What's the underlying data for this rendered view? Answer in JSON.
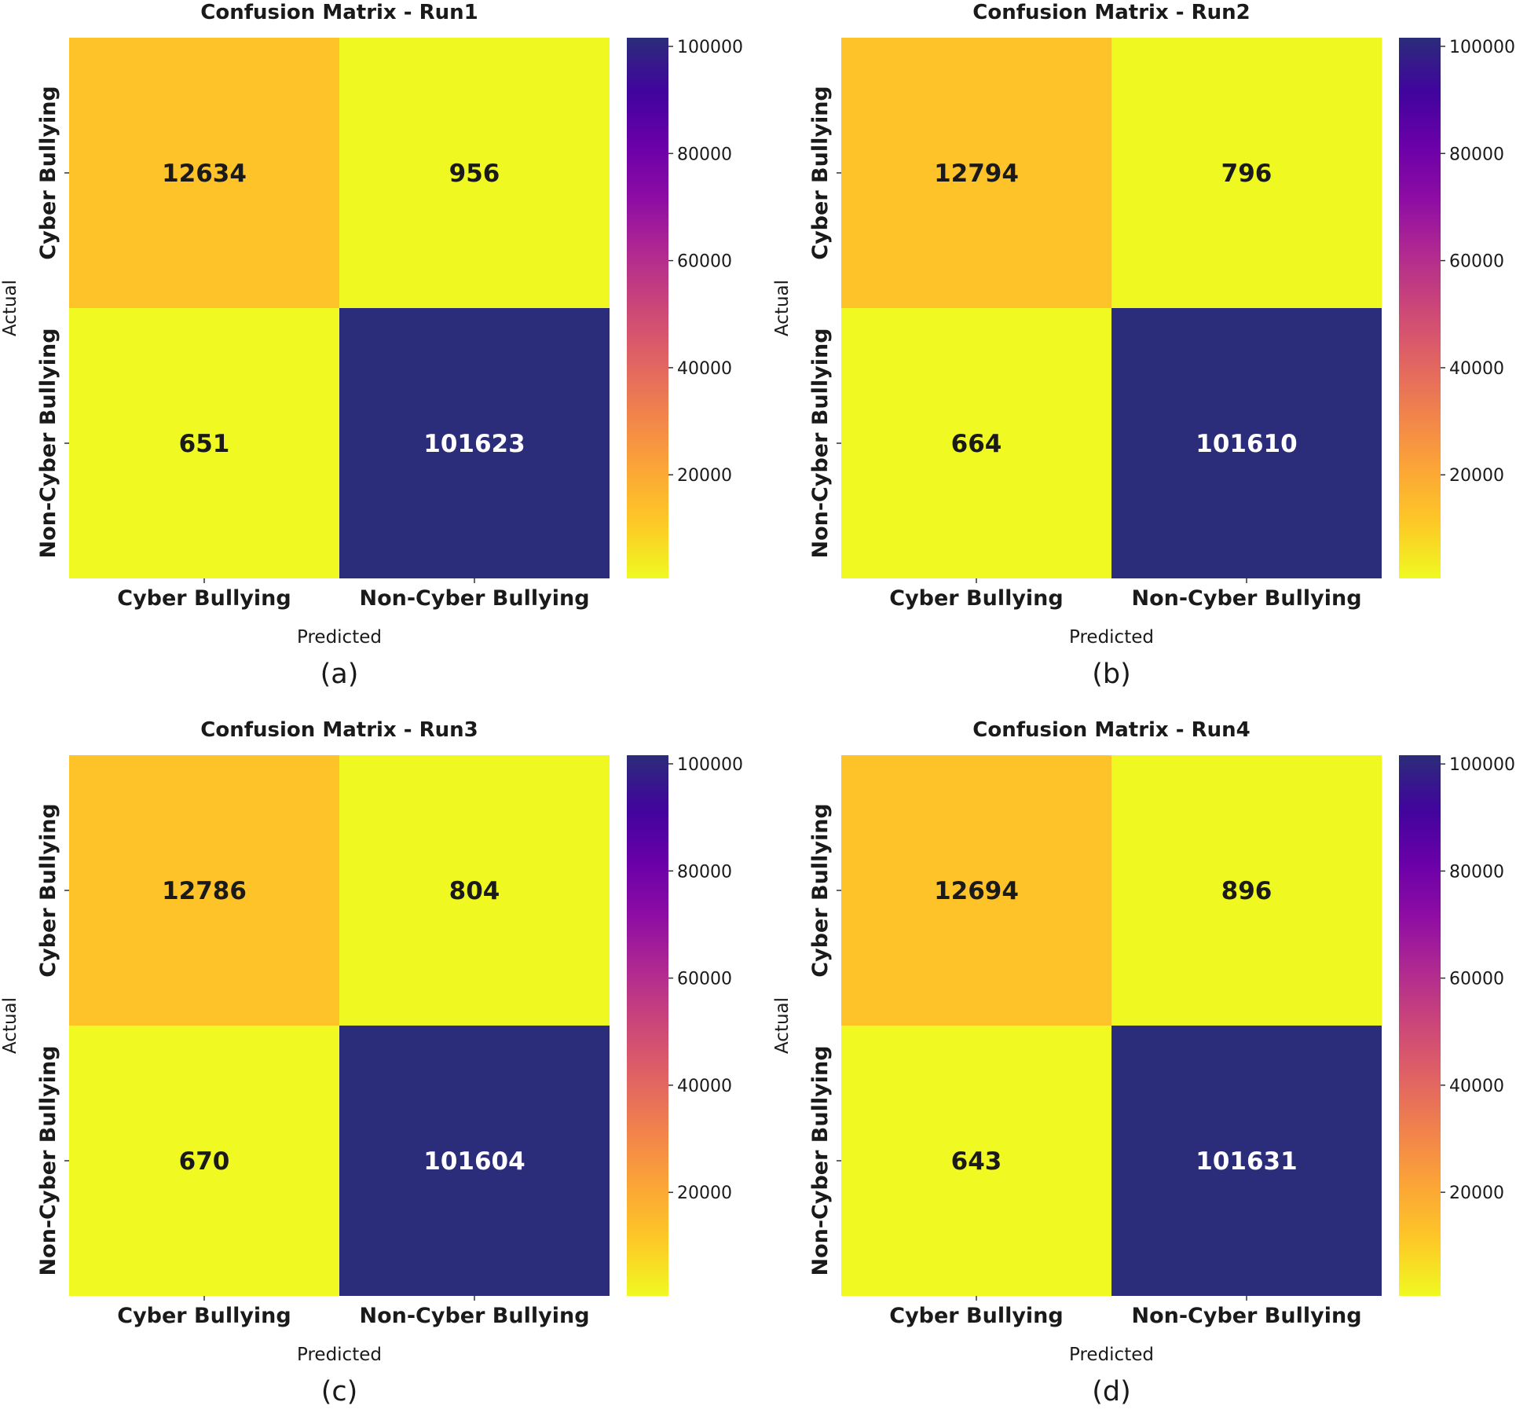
{
  "chart_data": [
    {
      "type": "heatmap",
      "title": "Confusion Matrix - Run1",
      "panel_label": "(a)",
      "xlabel": "Predicted",
      "ylabel": "Actual",
      "x_categories": [
        "Cyber Bullying",
        "Non-Cyber Bullying"
      ],
      "y_categories": [
        "Cyber Bullying",
        "Non-Cyber Bullying"
      ],
      "values": [
        [
          12634,
          956
        ],
        [
          651,
          101623
        ]
      ],
      "colormap": "plasma (reversed)",
      "colorbar_ticks": [
        20000,
        40000,
        60000,
        80000,
        100000
      ],
      "colorbar_range": [
        651,
        101623
      ],
      "grid": false
    },
    {
      "type": "heatmap",
      "title": "Confusion Matrix - Run2",
      "panel_label": "(b)",
      "xlabel": "Predicted",
      "ylabel": "Actual",
      "x_categories": [
        "Cyber Bullying",
        "Non-Cyber Bullying"
      ],
      "y_categories": [
        "Cyber Bullying",
        "Non-Cyber Bullying"
      ],
      "values": [
        [
          12794,
          796
        ],
        [
          664,
          101610
        ]
      ],
      "colormap": "plasma (reversed)",
      "colorbar_ticks": [
        20000,
        40000,
        60000,
        80000,
        100000
      ],
      "colorbar_range": [
        664,
        101610
      ],
      "grid": false
    },
    {
      "type": "heatmap",
      "title": "Confusion Matrix - Run3",
      "panel_label": "(c)",
      "xlabel": "Predicted",
      "ylabel": "Actual",
      "x_categories": [
        "Cyber Bullying",
        "Non-Cyber Bullying"
      ],
      "y_categories": [
        "Cyber Bullying",
        "Non-Cyber Bullying"
      ],
      "values": [
        [
          12786,
          804
        ],
        [
          670,
          101604
        ]
      ],
      "colormap": "plasma (reversed)",
      "colorbar_ticks": [
        20000,
        40000,
        60000,
        80000,
        100000
      ],
      "colorbar_range": [
        670,
        101604
      ],
      "grid": false
    },
    {
      "type": "heatmap",
      "title": "Confusion Matrix - Run4",
      "panel_label": "(d)",
      "xlabel": "Predicted",
      "ylabel": "Actual",
      "x_categories": [
        "Cyber Bullying",
        "Non-Cyber Bullying"
      ],
      "y_categories": [
        "Cyber Bullying",
        "Non-Cyber Bullying"
      ],
      "values": [
        [
          12694,
          896
        ],
        [
          643,
          101631
        ]
      ],
      "colormap": "plasma (reversed)",
      "colorbar_ticks": [
        20000,
        40000,
        60000,
        80000,
        100000
      ],
      "colorbar_range": [
        643,
        101631
      ],
      "grid": false
    }
  ],
  "colors": {
    "colormap_stops": [
      "#f0f921",
      "#fdca26",
      "#fca636",
      "#f2844b",
      "#e16462",
      "#cc4778",
      "#b12a90",
      "#8f0da4",
      "#6a00a8",
      "#41049d",
      "#2b2c7a"
    ],
    "text_dark": "#1a1a1a",
    "text_light": "#ffffff"
  }
}
